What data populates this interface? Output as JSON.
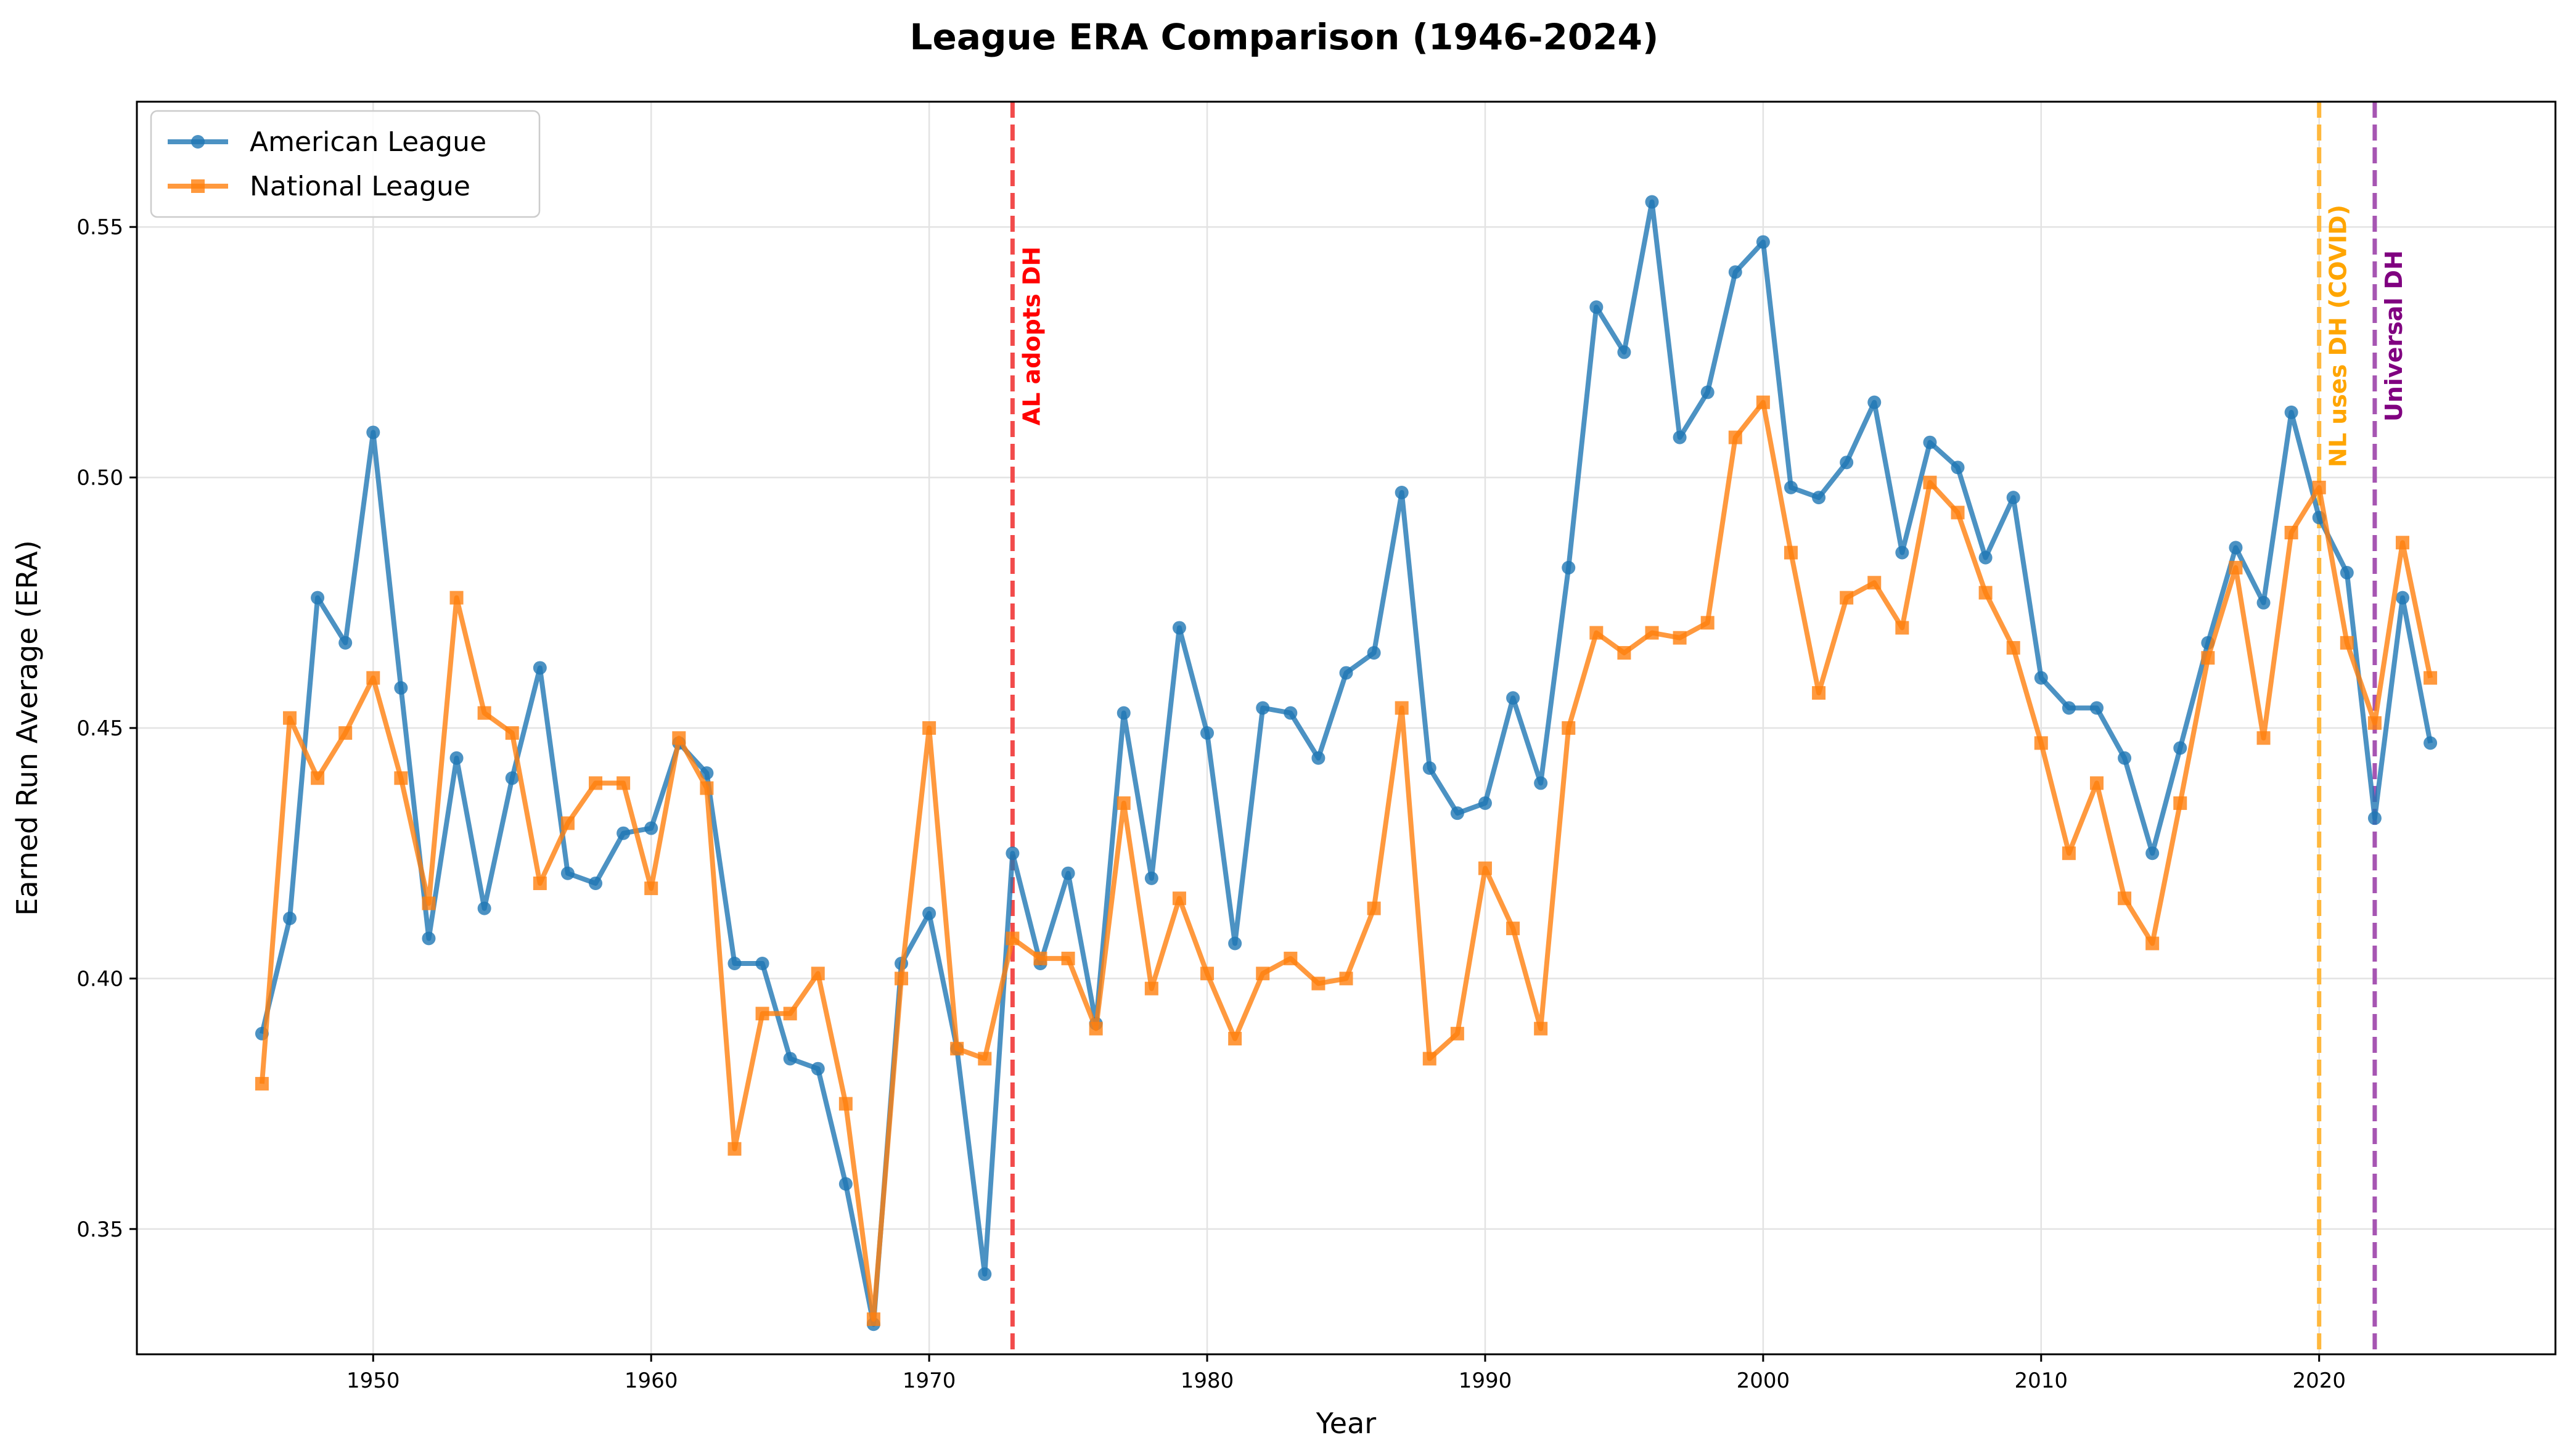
{
  "chart_data": {
    "type": "line",
    "title": "League ERA Comparison (1946-2024)",
    "xlabel": "Year",
    "ylabel": "Earned Run Average (ERA)",
    "xlim": [
      1941.5,
      2028.5
    ],
    "ylim": [
      0.325,
      0.575
    ],
    "x_ticks": [
      1950,
      1960,
      1970,
      1980,
      1990,
      2000,
      2010,
      2020
    ],
    "y_ticks": [
      0.35,
      0.4,
      0.45,
      0.5,
      0.55
    ],
    "x_tick_labels": [
      "1950",
      "1960",
      "1970",
      "1980",
      "1990",
      "2000",
      "2010",
      "2020"
    ],
    "y_tick_labels": [
      "0.35",
      "0.40",
      "0.45",
      "0.50",
      "0.55"
    ],
    "grid": true,
    "legend_position": "top-left",
    "x": [
      1946,
      1947,
      1948,
      1949,
      1950,
      1951,
      1952,
      1953,
      1954,
      1955,
      1956,
      1957,
      1958,
      1959,
      1960,
      1961,
      1962,
      1963,
      1964,
      1965,
      1966,
      1967,
      1968,
      1969,
      1970,
      1971,
      1972,
      1973,
      1974,
      1975,
      1976,
      1977,
      1978,
      1979,
      1980,
      1981,
      1982,
      1983,
      1984,
      1985,
      1986,
      1987,
      1988,
      1989,
      1990,
      1991,
      1992,
      1993,
      1994,
      1995,
      1996,
      1997,
      1998,
      1999,
      2000,
      2001,
      2002,
      2003,
      2004,
      2005,
      2006,
      2007,
      2008,
      2009,
      2010,
      2011,
      2012,
      2013,
      2014,
      2015,
      2016,
      2017,
      2018,
      2019,
      2020,
      2021,
      2022,
      2023,
      2024
    ],
    "series": [
      {
        "name": "American League",
        "color": "#1f77b4",
        "marker": "circle",
        "values": [
          0.389,
          0.412,
          0.476,
          0.467,
          0.509,
          0.458,
          0.408,
          0.444,
          0.414,
          0.44,
          0.462,
          0.421,
          0.419,
          0.429,
          0.43,
          0.447,
          0.441,
          0.403,
          0.403,
          0.384,
          0.382,
          0.359,
          0.331,
          0.403,
          0.413,
          0.386,
          0.341,
          0.425,
          0.403,
          0.421,
          0.391,
          0.453,
          0.42,
          0.47,
          0.449,
          0.407,
          0.454,
          0.453,
          0.444,
          0.461,
          0.465,
          0.497,
          0.442,
          0.433,
          0.435,
          0.456,
          0.439,
          0.482,
          0.534,
          0.525,
          0.555,
          0.508,
          0.517,
          0.541,
          0.547,
          0.498,
          0.496,
          0.503,
          0.515,
          0.485,
          0.507,
          0.502,
          0.484,
          0.496,
          0.46,
          0.454,
          0.454,
          0.444,
          0.425,
          0.446,
          0.467,
          0.486,
          0.475,
          0.513,
          0.492,
          0.481,
          0.432,
          0.476,
          0.447
        ]
      },
      {
        "name": "National League",
        "color": "#ff7f0e",
        "marker": "square",
        "values": [
          0.379,
          0.452,
          0.44,
          0.449,
          0.46,
          0.44,
          0.415,
          0.476,
          0.453,
          0.449,
          0.419,
          0.431,
          0.439,
          0.439,
          0.418,
          0.448,
          0.438,
          0.366,
          0.393,
          0.393,
          0.401,
          0.375,
          0.332,
          0.4,
          0.45,
          0.386,
          0.384,
          0.408,
          0.404,
          0.404,
          0.39,
          0.435,
          0.398,
          0.416,
          0.401,
          0.388,
          0.401,
          0.404,
          0.399,
          0.4,
          0.414,
          0.454,
          0.384,
          0.389,
          0.422,
          0.41,
          0.39,
          0.45,
          0.469,
          0.465,
          0.469,
          0.468,
          0.471,
          0.508,
          0.515,
          0.485,
          0.457,
          0.476,
          0.479,
          0.47,
          0.499,
          0.493,
          0.477,
          0.466,
          0.447,
          0.425,
          0.439,
          0.416,
          0.407,
          0.435,
          0.464,
          0.482,
          0.448,
          0.489,
          0.498,
          0.467,
          0.451,
          0.487,
          0.46
        ]
      }
    ],
    "annotations": [
      {
        "x": 1973,
        "label": "AL adopts DH",
        "color": "#ff0000",
        "line_color": "#f24b4b"
      },
      {
        "x": 2020,
        "label": "NL uses DH (COVID)",
        "color": "#ffa500",
        "line_color": "#ffb83d"
      },
      {
        "x": 2022,
        "label": "Universal DH",
        "color": "#800080",
        "line_color": "#a655b2"
      }
    ]
  }
}
